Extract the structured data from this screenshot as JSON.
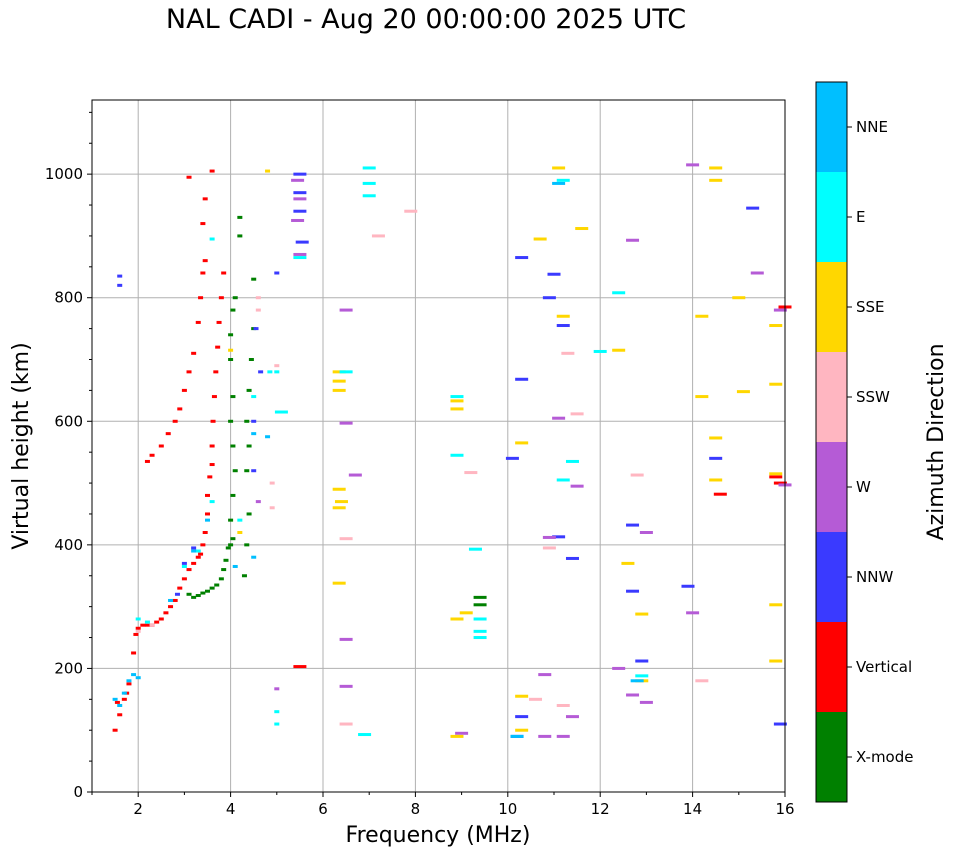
{
  "chart_data": {
    "type": "scatter",
    "title": "NAL CADI - Aug 20 00:00:00 2025 UTC",
    "xlabel": "Frequency (MHz)",
    "ylabel": "Virtual height (km)",
    "xlim": [
      1,
      16
    ],
    "ylim": [
      0,
      1120
    ],
    "xticks": [
      2,
      4,
      6,
      8,
      10,
      12,
      14,
      16
    ],
    "yticks": [
      0,
      200,
      400,
      600,
      800,
      1000
    ],
    "xtick_labels": [
      "2",
      "4",
      "6",
      "8",
      "10",
      "12",
      "14",
      "16"
    ],
    "ytick_labels": [
      "0",
      "200",
      "400",
      "600",
      "800",
      "1000"
    ],
    "grid": true,
    "colorbar": {
      "label": "Azimuth Direction",
      "categories": [
        {
          "name": "X-mode",
          "color": "#008000"
        },
        {
          "name": "Vertical",
          "color": "#ff0000"
        },
        {
          "name": "NNW",
          "color": "#3a3aff"
        },
        {
          "name": "W",
          "color": "#b55bd6"
        },
        {
          "name": "SSW",
          "color": "#ffb6c1"
        },
        {
          "name": "SSE",
          "color": "#ffd700"
        },
        {
          "name": "E",
          "color": "#00ffff"
        },
        {
          "name": "NNE",
          "color": "#00bfff"
        }
      ]
    },
    "series": [
      {
        "name": "Vertical",
        "points": [
          [
            1.5,
            100
          ],
          [
            1.6,
            125
          ],
          [
            1.55,
            145
          ],
          [
            1.7,
            150
          ],
          [
            1.75,
            160
          ],
          [
            1.8,
            175
          ],
          [
            1.9,
            225
          ],
          [
            1.95,
            255
          ],
          [
            2.0,
            265
          ],
          [
            2.1,
            270
          ],
          [
            2.2,
            270
          ],
          [
            2.3,
            270
          ],
          [
            2.4,
            275
          ],
          [
            2.5,
            280
          ],
          [
            2.6,
            290
          ],
          [
            2.7,
            300
          ],
          [
            2.8,
            310
          ],
          [
            2.9,
            330
          ],
          [
            3.0,
            345
          ],
          [
            3.1,
            360
          ],
          [
            3.2,
            370
          ],
          [
            3.3,
            380
          ],
          [
            3.35,
            385
          ],
          [
            3.4,
            400
          ],
          [
            3.45,
            420
          ],
          [
            3.5,
            450
          ],
          [
            3.5,
            480
          ],
          [
            3.55,
            510
          ],
          [
            3.6,
            530
          ],
          [
            3.6,
            560
          ],
          [
            3.62,
            600
          ],
          [
            3.65,
            640
          ],
          [
            3.68,
            680
          ],
          [
            3.72,
            720
          ],
          [
            3.75,
            760
          ],
          [
            3.8,
            800
          ],
          [
            3.85,
            840
          ],
          [
            2.2,
            535
          ],
          [
            2.3,
            545
          ],
          [
            2.5,
            560
          ],
          [
            2.65,
            580
          ],
          [
            2.8,
            600
          ],
          [
            2.9,
            620
          ],
          [
            3.0,
            650
          ],
          [
            3.1,
            680
          ],
          [
            3.2,
            710
          ],
          [
            3.3,
            760
          ],
          [
            3.35,
            800
          ],
          [
            3.4,
            840
          ],
          [
            3.45,
            860
          ],
          [
            3.4,
            920
          ],
          [
            3.45,
            960
          ],
          [
            3.6,
            1005
          ],
          [
            3.1,
            995
          ],
          [
            5.5,
            203
          ],
          [
            14.6,
            482
          ],
          [
            15.8,
            510
          ],
          [
            15.9,
            500
          ],
          [
            16.0,
            785
          ]
        ]
      },
      {
        "name": "X-mode",
        "points": [
          [
            3.1,
            320
          ],
          [
            3.2,
            315
          ],
          [
            3.3,
            318
          ],
          [
            3.4,
            322
          ],
          [
            3.5,
            325
          ],
          [
            3.6,
            330
          ],
          [
            3.7,
            335
          ],
          [
            3.8,
            345
          ],
          [
            3.85,
            360
          ],
          [
            3.9,
            375
          ],
          [
            3.95,
            395
          ],
          [
            4.0,
            400
          ],
          [
            4.05,
            410
          ],
          [
            4.0,
            440
          ],
          [
            4.05,
            480
          ],
          [
            4.1,
            520
          ],
          [
            4.05,
            560
          ],
          [
            4.0,
            600
          ],
          [
            4.05,
            640
          ],
          [
            4.0,
            700
          ],
          [
            4.0,
            740
          ],
          [
            4.05,
            780
          ],
          [
            4.1,
            800
          ],
          [
            4.2,
            900
          ],
          [
            4.2,
            930
          ],
          [
            4.3,
            350
          ],
          [
            4.35,
            400
          ],
          [
            4.4,
            450
          ],
          [
            4.35,
            520
          ],
          [
            4.4,
            560
          ],
          [
            4.35,
            600
          ],
          [
            4.4,
            650
          ],
          [
            4.45,
            700
          ],
          [
            4.5,
            750
          ],
          [
            4.5,
            830
          ],
          [
            9.4,
            303
          ],
          [
            9.4,
            315
          ]
        ]
      },
      {
        "name": "NNW",
        "points": [
          [
            1.6,
            835
          ],
          [
            1.6,
            820
          ],
          [
            2.85,
            320
          ],
          [
            3.0,
            370
          ],
          [
            3.2,
            395
          ],
          [
            4.65,
            680
          ],
          [
            4.5,
            600
          ],
          [
            4.5,
            520
          ],
          [
            4.55,
            750
          ],
          [
            5.0,
            840
          ],
          [
            5.5,
            1000
          ],
          [
            5.5,
            970
          ],
          [
            5.5,
            940
          ],
          [
            5.55,
            890
          ],
          [
            10.1,
            540
          ],
          [
            10.3,
            668
          ],
          [
            10.3,
            865
          ],
          [
            10.9,
            800
          ],
          [
            11.0,
            838
          ],
          [
            11.2,
            755
          ],
          [
            11.4,
            378
          ],
          [
            12.7,
            432
          ],
          [
            12.7,
            325
          ],
          [
            12.9,
            212
          ],
          [
            13.9,
            333
          ],
          [
            14.5,
            540
          ],
          [
            15.3,
            945
          ],
          [
            15.9,
            110
          ],
          [
            10.3,
            122
          ],
          [
            10.2,
            90
          ],
          [
            11.1,
            413
          ]
        ]
      },
      {
        "name": "W",
        "points": [
          [
            5.45,
            990
          ],
          [
            5.5,
            960
          ],
          [
            5.45,
            925
          ],
          [
            5.5,
            870
          ],
          [
            6.5,
            780
          ],
          [
            6.5,
            597
          ],
          [
            6.7,
            513
          ],
          [
            6.5,
            247
          ],
          [
            6.5,
            171
          ],
          [
            5.0,
            167
          ],
          [
            4.6,
            470
          ],
          [
            9.0,
            95
          ],
          [
            10.8,
            190
          ],
          [
            10.8,
            90
          ],
          [
            11.2,
            90
          ],
          [
            11.4,
            122
          ],
          [
            12.4,
            200
          ],
          [
            12.7,
            157
          ],
          [
            13.0,
            145
          ],
          [
            12.7,
            893
          ],
          [
            13.0,
            420
          ],
          [
            14.0,
            290
          ],
          [
            14.0,
            1015
          ],
          [
            15.4,
            840
          ],
          [
            15.9,
            780
          ],
          [
            16.0,
            497
          ],
          [
            11.1,
            605
          ],
          [
            11.5,
            495
          ],
          [
            10.9,
            412
          ]
        ]
      },
      {
        "name": "SSW",
        "points": [
          [
            2.0,
            260
          ],
          [
            2.2,
            275
          ],
          [
            2.3,
            270
          ],
          [
            4.6,
            800
          ],
          [
            4.6,
            780
          ],
          [
            4.9,
            500
          ],
          [
            4.9,
            460
          ],
          [
            5.0,
            690
          ],
          [
            6.5,
            410
          ],
          [
            6.5,
            110
          ],
          [
            7.2,
            900
          ],
          [
            7.9,
            940
          ],
          [
            9.2,
            517
          ],
          [
            10.6,
            150
          ],
          [
            11.3,
            710
          ],
          [
            11.5,
            612
          ],
          [
            12.8,
            513
          ],
          [
            14.2,
            180
          ],
          [
            10.9,
            395
          ],
          [
            11.2,
            140
          ]
        ]
      },
      {
        "name": "SSE",
        "points": [
          [
            6.35,
            680
          ],
          [
            6.35,
            665
          ],
          [
            6.35,
            650
          ],
          [
            6.4,
            470
          ],
          [
            6.35,
            460
          ],
          [
            6.35,
            490
          ],
          [
            6.35,
            338
          ],
          [
            4.2,
            420
          ],
          [
            4.0,
            715
          ],
          [
            8.9,
            620
          ],
          [
            8.9,
            633
          ],
          [
            8.9,
            280
          ],
          [
            9.1,
            290
          ],
          [
            8.9,
            90
          ],
          [
            10.7,
            895
          ],
          [
            11.2,
            770
          ],
          [
            11.6,
            912
          ],
          [
            12.4,
            715
          ],
          [
            12.6,
            370
          ],
          [
            12.9,
            288
          ],
          [
            12.9,
            180
          ],
          [
            14.2,
            770
          ],
          [
            14.2,
            640
          ],
          [
            14.5,
            573
          ],
          [
            14.5,
            505
          ],
          [
            14.5,
            1010
          ],
          [
            14.5,
            990
          ],
          [
            15.0,
            800
          ],
          [
            15.1,
            648
          ],
          [
            15.8,
            755
          ],
          [
            15.8,
            660
          ],
          [
            15.8,
            515
          ],
          [
            15.8,
            303
          ],
          [
            15.8,
            212
          ],
          [
            10.3,
            155
          ],
          [
            10.3,
            100
          ],
          [
            10.3,
            565
          ],
          [
            11.1,
            1010
          ],
          [
            4.8,
            1005
          ]
        ]
      },
      {
        "name": "E",
        "points": [
          [
            2.0,
            280
          ],
          [
            2.2,
            275
          ],
          [
            3.0,
            365
          ],
          [
            3.3,
            390
          ],
          [
            3.6,
            470
          ],
          [
            4.2,
            440
          ],
          [
            4.5,
            640
          ],
          [
            4.85,
            680
          ],
          [
            5.0,
            680
          ],
          [
            5.1,
            615
          ],
          [
            5.5,
            865
          ],
          [
            6.5,
            680
          ],
          [
            7.0,
            1010
          ],
          [
            7.0,
            985
          ],
          [
            7.0,
            965
          ],
          [
            6.9,
            93
          ],
          [
            8.9,
            640
          ],
          [
            8.9,
            545
          ],
          [
            9.4,
            280
          ],
          [
            9.4,
            260
          ],
          [
            9.4,
            250
          ],
          [
            9.3,
            393
          ],
          [
            11.2,
            990
          ],
          [
            11.4,
            535
          ],
          [
            11.2,
            505
          ],
          [
            12.0,
            713
          ],
          [
            12.4,
            808
          ],
          [
            12.9,
            188
          ],
          [
            5.0,
            110
          ],
          [
            5.0,
            130
          ],
          [
            3.6,
            895
          ]
        ]
      },
      {
        "name": "NNE",
        "points": [
          [
            1.5,
            150
          ],
          [
            1.6,
            140
          ],
          [
            1.7,
            160
          ],
          [
            1.8,
            180
          ],
          [
            1.9,
            190
          ],
          [
            2.0,
            185
          ],
          [
            2.7,
            310
          ],
          [
            3.2,
            390
          ],
          [
            3.5,
            440
          ],
          [
            4.1,
            365
          ],
          [
            4.5,
            380
          ],
          [
            4.5,
            580
          ],
          [
            4.8,
            575
          ],
          [
            10.2,
            90
          ],
          [
            11.1,
            985
          ],
          [
            12.8,
            180
          ]
        ]
      }
    ]
  }
}
